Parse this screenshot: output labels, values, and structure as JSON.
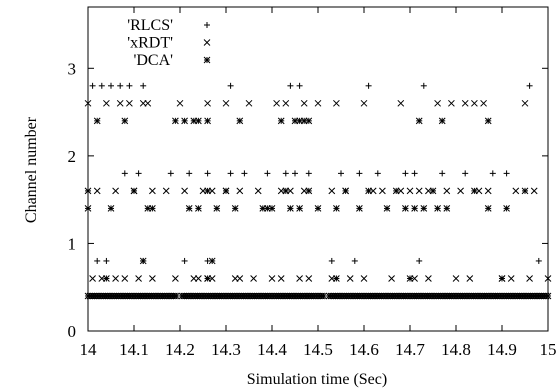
{
  "chart_data": {
    "type": "scatter",
    "xlabel": "Simulation time (Sec)",
    "ylabel": "Channel number",
    "xlim": [
      14,
      15
    ],
    "ylim": [
      0,
      3.7
    ],
    "xticks": [
      "14",
      "14.1",
      "14.2",
      "14.3",
      "14.4",
      "14.5",
      "14.6",
      "14.7",
      "14.8",
      "14.9",
      "15"
    ],
    "yticks": [
      "0",
      "1",
      "2",
      "3"
    ],
    "grid": false,
    "legend_position": "top-left",
    "series": [
      {
        "name": "'RLCS'",
        "marker": "plus",
        "points": [
          [
            14.01,
            2.8
          ],
          [
            14.03,
            2.8
          ],
          [
            14.05,
            2.8
          ],
          [
            14.07,
            2.8
          ],
          [
            14.09,
            2.8
          ],
          [
            14.12,
            2.8
          ],
          [
            14.31,
            2.8
          ],
          [
            14.44,
            2.8
          ],
          [
            14.46,
            2.8
          ],
          [
            14.61,
            2.8
          ],
          [
            14.73,
            2.8
          ],
          [
            14.96,
            2.8
          ],
          [
            14.02,
            0.8
          ],
          [
            14.04,
            0.8
          ],
          [
            14.12,
            0.8
          ],
          [
            14.21,
            0.8
          ],
          [
            14.26,
            0.8
          ],
          [
            14.53,
            0.8
          ],
          [
            14.58,
            0.8
          ],
          [
            14.72,
            0.8
          ],
          [
            14.98,
            0.8
          ],
          [
            14.08,
            1.8
          ],
          [
            14.11,
            1.8
          ],
          [
            14.18,
            1.8
          ],
          [
            14.22,
            1.8
          ],
          [
            14.26,
            1.8
          ],
          [
            14.31,
            1.8
          ],
          [
            14.34,
            1.8
          ],
          [
            14.39,
            1.8
          ],
          [
            14.43,
            1.8
          ],
          [
            14.45,
            1.8
          ],
          [
            14.48,
            1.8
          ],
          [
            14.55,
            1.8
          ],
          [
            14.59,
            1.8
          ],
          [
            14.63,
            1.8
          ],
          [
            14.69,
            1.8
          ],
          [
            14.71,
            1.8
          ],
          [
            14.77,
            1.8
          ],
          [
            14.82,
            1.8
          ],
          [
            14.88,
            1.8
          ],
          [
            14.91,
            1.8
          ]
        ]
      },
      {
        "name": "'xRDT'",
        "marker": "cross",
        "points": [
          [
            14.0,
            2.6
          ],
          [
            14.04,
            2.6
          ],
          [
            14.07,
            2.6
          ],
          [
            14.09,
            2.6
          ],
          [
            14.12,
            2.6
          ],
          [
            14.13,
            2.6
          ],
          [
            14.2,
            2.6
          ],
          [
            14.26,
            2.6
          ],
          [
            14.3,
            2.6
          ],
          [
            14.35,
            2.6
          ],
          [
            14.41,
            2.6
          ],
          [
            14.43,
            2.6
          ],
          [
            14.47,
            2.6
          ],
          [
            14.5,
            2.6
          ],
          [
            14.54,
            2.6
          ],
          [
            14.6,
            2.6
          ],
          [
            14.68,
            2.6
          ],
          [
            14.76,
            2.6
          ],
          [
            14.79,
            2.6
          ],
          [
            14.82,
            2.6
          ],
          [
            14.84,
            2.6
          ],
          [
            14.86,
            2.6
          ],
          [
            14.95,
            2.6
          ],
          [
            14.01,
            0.6
          ],
          [
            14.03,
            0.6
          ],
          [
            14.06,
            0.6
          ],
          [
            14.08,
            0.6
          ],
          [
            14.11,
            0.6
          ],
          [
            14.14,
            0.6
          ],
          [
            14.19,
            0.6
          ],
          [
            14.23,
            0.6
          ],
          [
            14.24,
            0.6
          ],
          [
            14.26,
            0.6
          ],
          [
            14.27,
            0.6
          ],
          [
            14.32,
            0.6
          ],
          [
            14.33,
            0.6
          ],
          [
            14.36,
            0.6
          ],
          [
            14.4,
            0.6
          ],
          [
            14.42,
            0.6
          ],
          [
            14.46,
            0.6
          ],
          [
            14.48,
            0.6
          ],
          [
            14.53,
            0.6
          ],
          [
            14.57,
            0.6
          ],
          [
            14.6,
            0.6
          ],
          [
            14.66,
            0.6
          ],
          [
            14.71,
            0.6
          ],
          [
            14.74,
            0.6
          ],
          [
            14.8,
            0.6
          ],
          [
            14.83,
            0.6
          ],
          [
            14.9,
            0.6
          ],
          [
            14.92,
            0.6
          ],
          [
            14.96,
            0.6
          ],
          [
            15.0,
            0.6
          ],
          [
            14.02,
            1.6
          ],
          [
            14.06,
            1.6
          ],
          [
            14.1,
            1.6
          ],
          [
            14.14,
            1.6
          ],
          [
            14.17,
            1.6
          ],
          [
            14.21,
            1.6
          ],
          [
            14.25,
            1.6
          ],
          [
            14.27,
            1.6
          ],
          [
            14.3,
            1.6
          ],
          [
            14.33,
            1.6
          ],
          [
            14.37,
            1.6
          ],
          [
            14.42,
            1.6
          ],
          [
            14.44,
            1.6
          ],
          [
            14.47,
            1.6
          ],
          [
            14.53,
            1.6
          ],
          [
            14.56,
            1.6
          ],
          [
            14.62,
            1.6
          ],
          [
            14.64,
            1.6
          ],
          [
            14.68,
            1.6
          ],
          [
            14.7,
            1.6
          ],
          [
            14.72,
            1.6
          ],
          [
            14.74,
            1.6
          ],
          [
            14.78,
            1.6
          ],
          [
            14.81,
            1.6
          ],
          [
            14.85,
            1.6
          ],
          [
            14.87,
            1.6
          ],
          [
            14.93,
            1.6
          ],
          [
            14.97,
            1.6
          ]
        ]
      },
      {
        "name": "'DCA'",
        "marker": "star",
        "points": [
          [
            14.02,
            2.4
          ],
          [
            14.08,
            2.4
          ],
          [
            14.19,
            2.4
          ],
          [
            14.21,
            2.4
          ],
          [
            14.23,
            2.4
          ],
          [
            14.24,
            2.4
          ],
          [
            14.26,
            2.4
          ],
          [
            14.33,
            2.4
          ],
          [
            14.42,
            2.4
          ],
          [
            14.45,
            2.4
          ],
          [
            14.46,
            2.4
          ],
          [
            14.47,
            2.4
          ],
          [
            14.48,
            2.4
          ],
          [
            14.72,
            2.4
          ],
          [
            14.77,
            2.4
          ],
          [
            14.87,
            2.4
          ],
          [
            14.0,
            1.4
          ],
          [
            14.05,
            1.4
          ],
          [
            14.13,
            1.4
          ],
          [
            14.14,
            1.4
          ],
          [
            14.22,
            1.4
          ],
          [
            14.24,
            1.4
          ],
          [
            14.28,
            1.4
          ],
          [
            14.32,
            1.4
          ],
          [
            14.38,
            1.4
          ],
          [
            14.39,
            1.4
          ],
          [
            14.4,
            1.4
          ],
          [
            14.44,
            1.4
          ],
          [
            14.46,
            1.4
          ],
          [
            14.5,
            1.4
          ],
          [
            14.54,
            1.4
          ],
          [
            14.59,
            1.4
          ],
          [
            14.65,
            1.4
          ],
          [
            14.69,
            1.4
          ],
          [
            14.71,
            1.4
          ],
          [
            14.73,
            1.4
          ],
          [
            14.76,
            1.4
          ],
          [
            14.78,
            1.4
          ],
          [
            14.87,
            1.4
          ],
          [
            14.91,
            1.4
          ],
          [
            14.0,
            1.6
          ],
          [
            14.1,
            1.6
          ],
          [
            14.26,
            1.6
          ],
          [
            14.3,
            1.6
          ],
          [
            14.43,
            1.6
          ],
          [
            14.48,
            1.6
          ],
          [
            14.56,
            1.6
          ],
          [
            14.61,
            1.6
          ],
          [
            14.67,
            1.6
          ],
          [
            14.75,
            1.6
          ],
          [
            14.84,
            1.6
          ],
          [
            14.95,
            1.6
          ],
          [
            14.12,
            0.8
          ],
          [
            14.27,
            0.8
          ],
          [
            14.04,
            0.6
          ],
          [
            14.26,
            0.6
          ],
          [
            14.54,
            0.6
          ],
          [
            14.7,
            0.6
          ],
          [
            14.9,
            0.6
          ]
        ],
        "band": {
          "from": 14.0,
          "to": 15.0,
          "y": 0.4,
          "step": 0.004,
          "gaps": [
            [
              14.195,
              14.203
            ],
            [
              14.515,
              14.523
            ]
          ]
        }
      }
    ]
  }
}
